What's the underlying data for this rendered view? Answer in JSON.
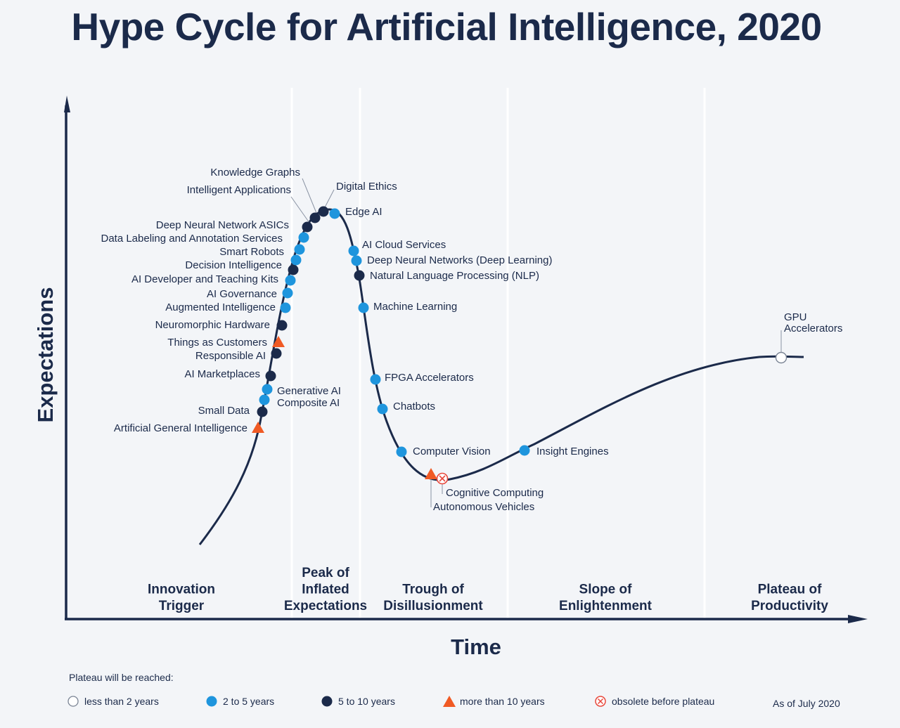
{
  "title": "Hype Cycle for Artificial Intelligence, 2020",
  "colors": {
    "navy": "#1b2a4a",
    "blue": "#1e95dd",
    "dark": "#1b2a4a",
    "orange": "#f05a24",
    "obsolete": "#e8483c"
  },
  "chart_data": {
    "type": "scatter",
    "xlabel": "Time",
    "ylabel": "Expectations",
    "phases": [
      {
        "name": "Innovation Trigger",
        "lines": [
          "Innovation",
          "Trigger"
        ]
      },
      {
        "name": "Peak of Inflated Expectations",
        "lines": [
          "Peak of",
          "Inflated",
          "Expectations"
        ]
      },
      {
        "name": "Trough of Disillusionment",
        "lines": [
          "Trough of",
          "Disillusionment"
        ]
      },
      {
        "name": "Slope of Enlightenment",
        "lines": [
          "Slope of",
          "Enlightenment"
        ]
      },
      {
        "name": "Plateau of Productivity",
        "lines": [
          "Plateau of",
          "Productivity"
        ]
      }
    ],
    "technologies": [
      {
        "name": "Artificial General Intelligence",
        "phase": "Innovation Trigger",
        "plateau": "more than 10 years"
      },
      {
        "name": "Small Data",
        "phase": "Innovation Trigger",
        "plateau": "5 to 10 years"
      },
      {
        "name": "Composite AI",
        "phase": "Innovation Trigger",
        "plateau": "2 to 5 years"
      },
      {
        "name": "Generative AI",
        "phase": "Innovation Trigger",
        "plateau": "2 to 5 years"
      },
      {
        "name": "AI Marketplaces",
        "phase": "Innovation Trigger",
        "plateau": "5 to 10 years"
      },
      {
        "name": "Responsible AI",
        "phase": "Innovation Trigger",
        "plateau": "5 to 10 years"
      },
      {
        "name": "Things as Customers",
        "phase": "Innovation Trigger",
        "plateau": "more than 10 years"
      },
      {
        "name": "Neuromorphic Hardware",
        "phase": "Innovation Trigger",
        "plateau": "5 to 10 years"
      },
      {
        "name": "Augmented Intelligence",
        "phase": "Innovation Trigger",
        "plateau": "2 to 5 years"
      },
      {
        "name": "AI Governance",
        "phase": "Innovation Trigger",
        "plateau": "2 to 5 years"
      },
      {
        "name": "AI Developer and Teaching Kits",
        "phase": "Innovation Trigger",
        "plateau": "2 to 5 years"
      },
      {
        "name": "Decision Intelligence",
        "phase": "Innovation Trigger",
        "plateau": "5 to 10 years"
      },
      {
        "name": "Smart Robots",
        "phase": "Innovation Trigger",
        "plateau": "2 to 5 years"
      },
      {
        "name": "Data Labeling and Annotation Services",
        "phase": "Innovation Trigger",
        "plateau": "2 to 5 years"
      },
      {
        "name": "Deep Neural Network ASICs",
        "phase": "Peak of Inflated Expectations",
        "plateau": "2 to 5 years"
      },
      {
        "name": "Intelligent Applications",
        "phase": "Peak of Inflated Expectations",
        "plateau": "5 to 10 years"
      },
      {
        "name": "Knowledge Graphs",
        "phase": "Peak of Inflated Expectations",
        "plateau": "5 to 10 years"
      },
      {
        "name": "Digital Ethics",
        "phase": "Peak of Inflated Expectations",
        "plateau": "5 to 10 years"
      },
      {
        "name": "Edge AI",
        "phase": "Peak of Inflated Expectations",
        "plateau": "2 to 5 years"
      },
      {
        "name": "AI Cloud Services",
        "phase": "Peak of Inflated Expectations",
        "plateau": "2 to 5 years"
      },
      {
        "name": "Deep Neural Networks (Deep Learning)",
        "phase": "Peak of Inflated Expectations",
        "plateau": "2 to 5 years"
      },
      {
        "name": "Natural Language Processing (NLP)",
        "phase": "Peak of Inflated Expectations",
        "plateau": "5 to 10 years"
      },
      {
        "name": "Machine Learning",
        "phase": "Peak of Inflated Expectations",
        "plateau": "2 to 5 years"
      },
      {
        "name": "FPGA Accelerators",
        "phase": "Trough of Disillusionment",
        "plateau": "2 to 5 years"
      },
      {
        "name": "Chatbots",
        "phase": "Trough of Disillusionment",
        "plateau": "2 to 5 years"
      },
      {
        "name": "Computer Vision",
        "phase": "Trough of Disillusionment",
        "plateau": "2 to 5 years"
      },
      {
        "name": "Autonomous Vehicles",
        "phase": "Trough of Disillusionment",
        "plateau": "more than 10 years"
      },
      {
        "name": "Cognitive Computing",
        "phase": "Trough of Disillusionment",
        "plateau": "obsolete before plateau"
      },
      {
        "name": "Insight Engines",
        "phase": "Slope of Enlightenment",
        "plateau": "2 to 5 years"
      },
      {
        "name": "GPU Accelerators",
        "phase": "Plateau of Productivity",
        "plateau": "less than 2 years"
      }
    ]
  },
  "legend": {
    "title": "Plateau will be reached:",
    "items": [
      {
        "label": "less than 2 years",
        "symbol": "open-circle"
      },
      {
        "label": "2 to 5 years",
        "symbol": "blue-dot"
      },
      {
        "label": "5 to 10 years",
        "symbol": "dark-dot"
      },
      {
        "label": "more than 10 years",
        "symbol": "triangle"
      },
      {
        "label": "obsolete before plateau",
        "symbol": "obsolete-circle"
      }
    ],
    "as_of": "As of July 2020"
  }
}
